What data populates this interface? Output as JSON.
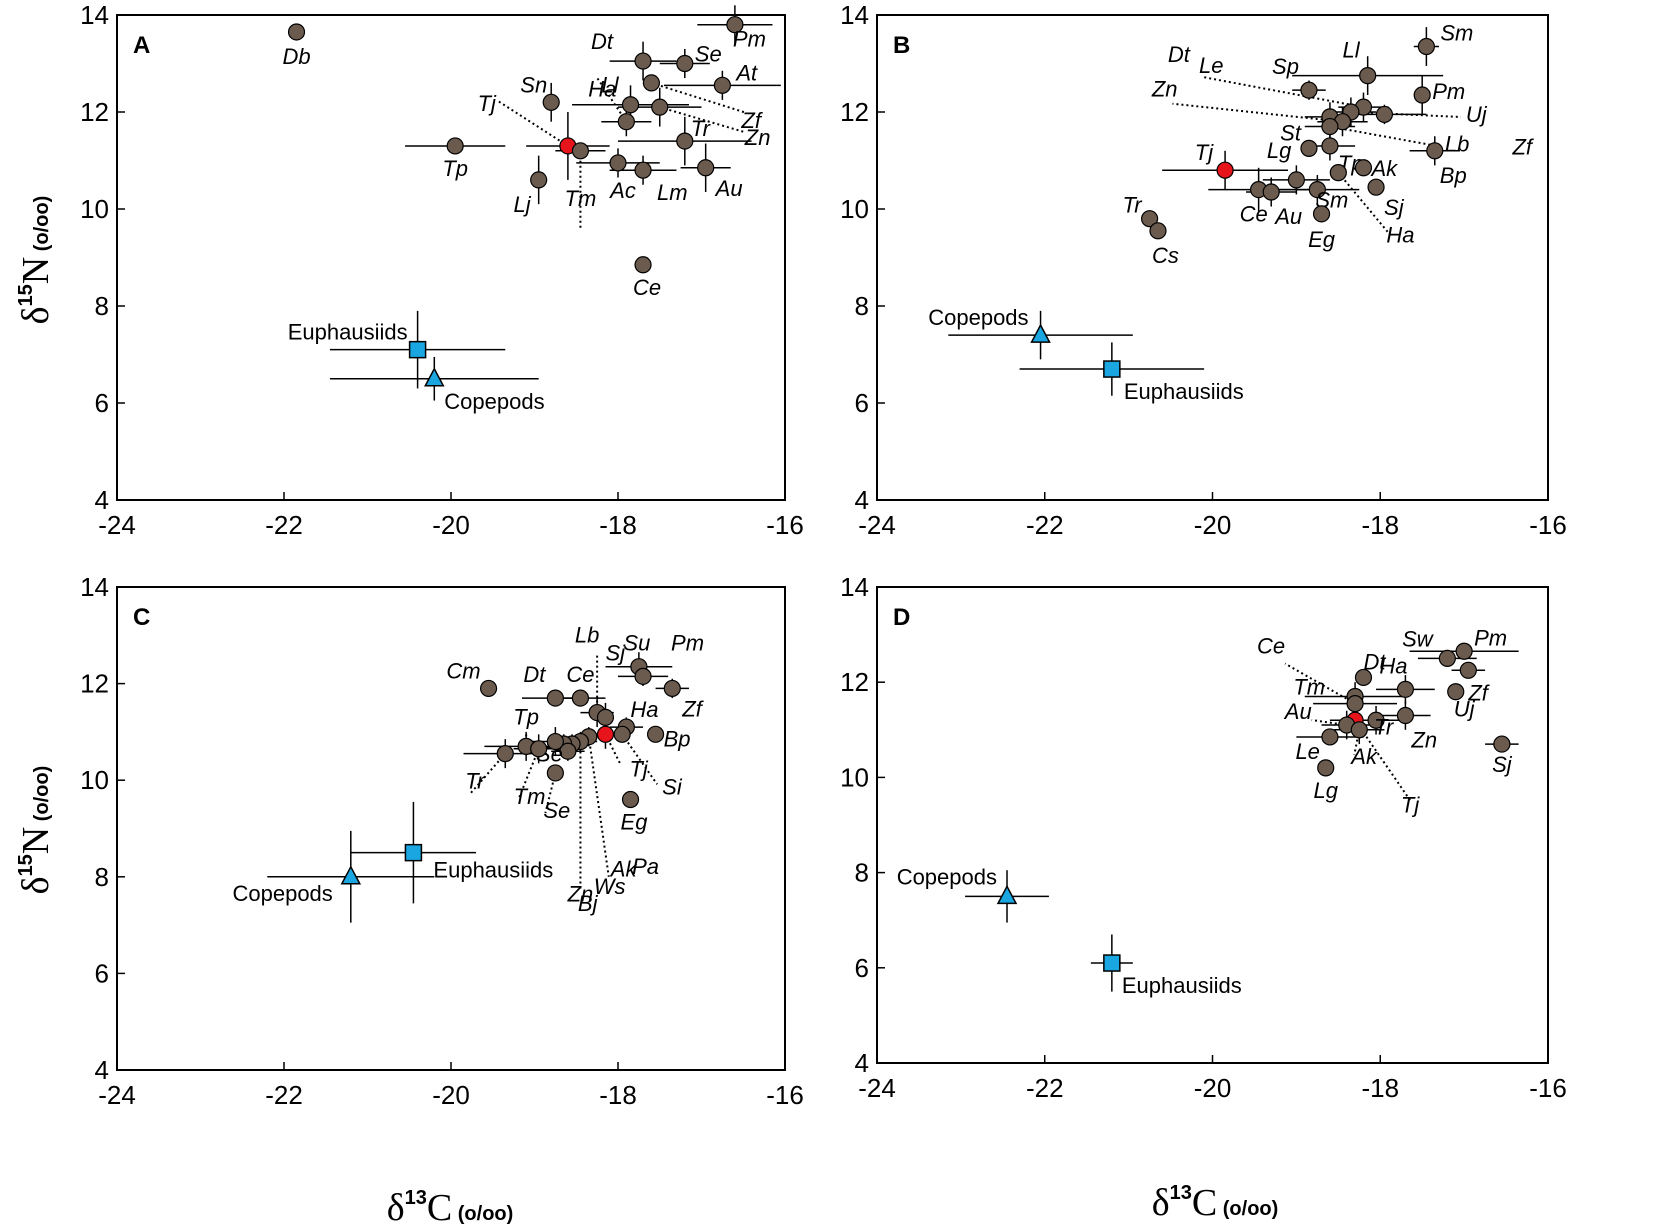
{
  "colors": {
    "fish": "#6b5b4e",
    "tj": "#e8141b",
    "zooplankton": "#1aa6e0",
    "axis": "#000000"
  },
  "chart_data": [
    {
      "type": "scatter",
      "panel": "A",
      "xlabel_main": "δ",
      "xlabel_sup": "13",
      "xlabel_rest": "C",
      "xlabel_unit": "(o/oo)",
      "ylabel_main": "δ",
      "ylabel_sup": "15",
      "ylabel_rest": "N",
      "ylabel_unit": "(o/oo)",
      "xlim": [
        -24,
        -16
      ],
      "ylim": [
        4,
        14
      ],
      "xticks": [
        "-24",
        "-22",
        "-20",
        "-18",
        "-16"
      ],
      "yticks": [
        "4",
        "6",
        "8",
        "10",
        "12",
        "14"
      ],
      "points": [
        {
          "label": "Db",
          "x": -21.85,
          "y": 13.65,
          "xerr": 0,
          "yerr": 0,
          "kind": "fish"
        },
        {
          "label": "Pm",
          "x": -16.6,
          "y": 13.8,
          "xerr": 0.45,
          "yerr": 0.4,
          "kind": "fish"
        },
        {
          "label": "Dt",
          "x": -17.7,
          "y": 13.05,
          "xerr": 0.4,
          "yerr": 0.4,
          "kind": "fish"
        },
        {
          "label": "Se",
          "x": -17.2,
          "y": 13.0,
          "xerr": 0.3,
          "yerr": 0.3,
          "kind": "fish"
        },
        {
          "label": "At",
          "x": -16.75,
          "y": 12.55,
          "xerr": 0.7,
          "yerr": 0.3,
          "kind": "fish"
        },
        {
          "label": "Sn",
          "x": -18.8,
          "y": 12.2,
          "xerr": 0,
          "yerr": 0.4,
          "kind": "fish"
        },
        {
          "label": "Ll",
          "x": -17.85,
          "y": 12.15,
          "xerr": 0.7,
          "yerr": 0.4,
          "kind": "fish"
        },
        {
          "label": "Zf",
          "x": -17.6,
          "y": 12.6,
          "xerr": 0,
          "yerr": 0,
          "kind": "fish"
        },
        {
          "label": "Zn",
          "x": -17.5,
          "y": 12.1,
          "xerr": 0.5,
          "yerr": 0.4,
          "kind": "fish"
        },
        {
          "label": "Ha",
          "x": -17.9,
          "y": 11.8,
          "xerr": 0.3,
          "yerr": 0.3,
          "kind": "fish"
        },
        {
          "label": "Tp",
          "x": -19.95,
          "y": 11.3,
          "xerr": 0.6,
          "yerr": 0,
          "kind": "fish"
        },
        {
          "label": "Tj",
          "x": -18.6,
          "y": 11.3,
          "xerr": 0.5,
          "yerr": 0.7,
          "kind": "tj"
        },
        {
          "label": "Tm",
          "x": -18.45,
          "y": 11.2,
          "xerr": 0.3,
          "yerr": 0,
          "kind": "fish"
        },
        {
          "label": "Tr",
          "x": -17.2,
          "y": 11.4,
          "xerr": 0.8,
          "yerr": 0.5,
          "kind": "fish"
        },
        {
          "label": "Ac",
          "x": -18.0,
          "y": 10.95,
          "xerr": 0.5,
          "yerr": 0.3,
          "kind": "fish"
        },
        {
          "label": "Lm",
          "x": -17.7,
          "y": 10.8,
          "xerr": 0.4,
          "yerr": 0.3,
          "kind": "fish"
        },
        {
          "label": "Au",
          "x": -16.95,
          "y": 10.85,
          "xerr": 0.3,
          "yerr": 0.5,
          "kind": "fish"
        },
        {
          "label": "Lj",
          "x": -18.95,
          "y": 10.6,
          "xerr": 0,
          "yerr": 0.5,
          "kind": "fish"
        },
        {
          "label": "Ce",
          "x": -17.7,
          "y": 8.85,
          "xerr": 0,
          "yerr": 0,
          "kind": "fish"
        },
        {
          "label": "Euphausiids",
          "x": -20.4,
          "y": 7.1,
          "xerr": 1.05,
          "yerr": 0.8,
          "kind": "euphausiid"
        },
        {
          "label": "Copepods",
          "x": -20.2,
          "y": 6.5,
          "xerr": 1.25,
          "yerr": 0.45,
          "kind": "copepod"
        }
      ]
    },
    {
      "type": "scatter",
      "panel": "B",
      "xlim": [
        -24,
        -16
      ],
      "ylim": [
        4,
        14
      ],
      "xticks": [
        "-24",
        "-22",
        "-20",
        "-18",
        "-16"
      ],
      "yticks": [
        "4",
        "6",
        "8",
        "10",
        "12",
        "14"
      ],
      "points": [
        {
          "label": "Sm",
          "x": -17.45,
          "y": 13.35,
          "xerr": 0.15,
          "yerr": 0.4,
          "kind": "fish"
        },
        {
          "label": "Ll",
          "x": -18.15,
          "y": 12.75,
          "xerr": 0.9,
          "yerr": 0.4,
          "kind": "fish"
        },
        {
          "label": "Sp",
          "x": -18.85,
          "y": 12.45,
          "xerr": 0.2,
          "yerr": 0.2,
          "kind": "fish"
        },
        {
          "label": "Pm",
          "x": -17.5,
          "y": 12.35,
          "xerr": 0,
          "yerr": 0.4,
          "kind": "fish"
        },
        {
          "label": "Le",
          "x": -18.2,
          "y": 12.1,
          "xerr": 0.3,
          "yerr": 0.3,
          "kind": "fish"
        },
        {
          "label": "Zf",
          "x": -17.95,
          "y": 11.95,
          "xerr": 0.5,
          "yerr": 0.2,
          "kind": "fish"
        },
        {
          "label": "Dt",
          "x": -18.6,
          "y": 11.9,
          "xerr": 0.3,
          "yerr": 0.3,
          "kind": "fish"
        },
        {
          "label": "Uj",
          "x": -18.35,
          "y": 12.0,
          "xerr": 0.3,
          "yerr": 0.3,
          "kind": "fish"
        },
        {
          "label": "Zn",
          "x": -18.45,
          "y": 11.8,
          "xerr": 0.3,
          "yerr": 0.3,
          "kind": "fish"
        },
        {
          "label": "Lb",
          "x": -18.6,
          "y": 11.7,
          "xerr": 0.3,
          "yerr": 0.3,
          "kind": "fish"
        },
        {
          "label": "St",
          "x": -18.85,
          "y": 11.25,
          "xerr": 0,
          "yerr": 0,
          "kind": "fish"
        },
        {
          "label": "Tp",
          "x": -18.6,
          "y": 11.3,
          "xerr": 0.3,
          "yerr": 0.3,
          "kind": "fish"
        },
        {
          "label": "Bp",
          "x": -17.35,
          "y": 11.2,
          "xerr": 0.3,
          "yerr": 0.3,
          "kind": "fish"
        },
        {
          "label": "Tj",
          "x": -19.85,
          "y": 10.8,
          "xerr": 0.75,
          "yerr": 0.4,
          "kind": "tj"
        },
        {
          "label": "Ak",
          "x": -18.2,
          "y": 10.85,
          "xerr": 0,
          "yerr": 0,
          "kind": "fish"
        },
        {
          "label": "Ha",
          "x": -18.5,
          "y": 10.75,
          "xerr": 0,
          "yerr": 0,
          "kind": "fish"
        },
        {
          "label": "Lg",
          "x": -19.0,
          "y": 10.6,
          "xerr": 0.4,
          "yerr": 0.3,
          "kind": "fish"
        },
        {
          "label": "Sj",
          "x": -18.05,
          "y": 10.45,
          "xerr": 0,
          "yerr": 0,
          "kind": "fish"
        },
        {
          "label": "Sm",
          "x": -18.75,
          "y": 10.4,
          "xerr": 0.5,
          "yerr": 0.3,
          "kind": "fish"
        },
        {
          "label": "Ce",
          "x": -19.45,
          "y": 10.4,
          "xerr": 0.6,
          "yerr": 0.45,
          "kind": "fish"
        },
        {
          "label": "Au",
          "x": -19.3,
          "y": 10.35,
          "xerr": 0.3,
          "yerr": 0.3,
          "kind": "fish"
        },
        {
          "label": "Eg",
          "x": -18.7,
          "y": 9.9,
          "xerr": 0,
          "yerr": 0,
          "kind": "fish"
        },
        {
          "label": "Tr",
          "x": -20.75,
          "y": 9.8,
          "xerr": 0,
          "yerr": 0,
          "kind": "fish"
        },
        {
          "label": "Cs",
          "x": -20.65,
          "y": 9.55,
          "xerr": 0,
          "yerr": 0,
          "kind": "fish"
        },
        {
          "label": "Copepods",
          "x": -22.05,
          "y": 7.4,
          "xerr": 1.1,
          "yerr": 0.5,
          "kind": "copepod"
        },
        {
          "label": "Euphausiids",
          "x": -21.2,
          "y": 6.7,
          "xerr": 1.1,
          "yerr": 0.55,
          "kind": "euphausiid"
        }
      ]
    },
    {
      "type": "scatter",
      "panel": "C",
      "xlim": [
        -24,
        -16
      ],
      "ylim": [
        4,
        14
      ],
      "xticks": [
        "-24",
        "-22",
        "-20",
        "-18",
        "-16"
      ],
      "yticks": [
        "4",
        "6",
        "8",
        "10",
        "12",
        "14"
      ],
      "points": [
        {
          "label": "Cm",
          "x": -19.55,
          "y": 11.9,
          "xerr": 0,
          "yerr": 0,
          "kind": "fish"
        },
        {
          "label": "Su",
          "x": -17.75,
          "y": 12.35,
          "xerr": 0.4,
          "yerr": 0.3,
          "kind": "fish"
        },
        {
          "label": "Pm",
          "x": -17.7,
          "y": 12.15,
          "xerr": 0.3,
          "yerr": 0.2,
          "kind": "fish"
        },
        {
          "label": "Zf",
          "x": -17.35,
          "y": 11.9,
          "xerr": 0.2,
          "yerr": 0.2,
          "kind": "fish"
        },
        {
          "label": "Dt",
          "x": -18.75,
          "y": 11.7,
          "xerr": 0.4,
          "yerr": 0,
          "kind": "fish"
        },
        {
          "label": "Ce",
          "x": -18.45,
          "y": 11.7,
          "xerr": 0.3,
          "yerr": 0,
          "kind": "fish"
        },
        {
          "label": "Lb",
          "x": -18.25,
          "y": 11.4,
          "xerr": 0.2,
          "yerr": 0.3,
          "kind": "fish"
        },
        {
          "label": "Sj",
          "x": -18.15,
          "y": 11.3,
          "xerr": 0,
          "yerr": 0.3,
          "kind": "fish"
        },
        {
          "label": "Ha",
          "x": -17.9,
          "y": 11.1,
          "xerr": 0.2,
          "yerr": 0.2,
          "kind": "fish"
        },
        {
          "label": "Bp",
          "x": -17.55,
          "y": 10.95,
          "xerr": 0,
          "yerr": 0,
          "kind": "fish"
        },
        {
          "label": "Tj",
          "x": -18.15,
          "y": 10.95,
          "xerr": 0.3,
          "yerr": 0.3,
          "kind": "tj"
        },
        {
          "label": "Si",
          "x": -17.95,
          "y": 10.95,
          "xerr": 0,
          "yerr": 0,
          "kind": "fish"
        },
        {
          "label": "Ak",
          "x": -18.35,
          "y": 10.9,
          "xerr": 0.2,
          "yerr": 0.2,
          "kind": "fish"
        },
        {
          "label": "Zn",
          "x": -18.45,
          "y": 10.8,
          "xerr": 0.2,
          "yerr": 0.2,
          "kind": "fish"
        },
        {
          "label": "Pa",
          "x": -18.55,
          "y": 10.75,
          "xerr": 0.2,
          "yerr": 0.2,
          "kind": "fish"
        },
        {
          "label": "Ws",
          "x": -18.65,
          "y": 10.75,
          "xerr": 0.2,
          "yerr": 0.2,
          "kind": "fish"
        },
        {
          "label": "Bj",
          "x": -18.6,
          "y": 10.6,
          "xerr": 0.2,
          "yerr": 0.2,
          "kind": "fish"
        },
        {
          "label": "Tp",
          "x": -19.1,
          "y": 10.7,
          "xerr": 0.5,
          "yerr": 0.3,
          "kind": "fish"
        },
        {
          "label": "Se",
          "x": -18.75,
          "y": 10.8,
          "xerr": 0.3,
          "yerr": 0.3,
          "kind": "fish"
        },
        {
          "label": "Tr",
          "x": -19.35,
          "y": 10.55,
          "xerr": 0.5,
          "yerr": 0.3,
          "kind": "fish"
        },
        {
          "label": "Tm",
          "x": -18.95,
          "y": 10.65,
          "xerr": 0.3,
          "yerr": 0.3,
          "kind": "fish"
        },
        {
          "label": "Se2",
          "x": -18.75,
          "y": 10.15,
          "xerr": 0,
          "yerr": 0,
          "kind": "fish"
        },
        {
          "label": "Eg",
          "x": -17.85,
          "y": 9.6,
          "xerr": 0,
          "yerr": 0,
          "kind": "fish"
        },
        {
          "label": "Euphausiids",
          "x": -20.45,
          "y": 8.5,
          "xerr": 0.75,
          "yerr": 1.05,
          "kind": "euphausiid"
        },
        {
          "label": "Copepods",
          "x": -21.2,
          "y": 8.0,
          "xerr": 1.0,
          "yerr": 0.95,
          "kind": "copepod"
        }
      ]
    },
    {
      "type": "scatter",
      "panel": "D",
      "xlim": [
        -24,
        -16
      ],
      "ylim": [
        4,
        14
      ],
      "xticks": [
        "-24",
        "-22",
        "-20",
        "-18",
        "-16"
      ],
      "yticks": [
        "4",
        "6",
        "8",
        "10",
        "12",
        "14"
      ],
      "points": [
        {
          "label": "Pm",
          "x": -17.0,
          "y": 12.65,
          "xerr": 0.65,
          "yerr": 0,
          "kind": "fish"
        },
        {
          "label": "Sw",
          "x": -17.2,
          "y": 12.5,
          "xerr": 0.35,
          "yerr": 0,
          "kind": "fish"
        },
        {
          "label": "Zf",
          "x": -16.95,
          "y": 12.25,
          "xerr": 0.2,
          "yerr": 0,
          "kind": "fish"
        },
        {
          "label": "Dt",
          "x": -18.2,
          "y": 12.1,
          "xerr": 0,
          "yerr": 0,
          "kind": "fish"
        },
        {
          "label": "Ha",
          "x": -17.7,
          "y": 11.85,
          "xerr": 0.35,
          "yerr": 0.3,
          "kind": "fish"
        },
        {
          "label": "Uj",
          "x": -17.1,
          "y": 11.8,
          "xerr": 0,
          "yerr": 0,
          "kind": "fish"
        },
        {
          "label": "Tm",
          "x": -18.3,
          "y": 11.7,
          "xerr": 0.6,
          "yerr": 0.3,
          "kind": "fish"
        },
        {
          "label": "Ce",
          "x": -18.3,
          "y": 11.55,
          "xerr": 0.5,
          "yerr": 0.3,
          "kind": "fish"
        },
        {
          "label": "Zn",
          "x": -17.7,
          "y": 11.3,
          "xerr": 0.3,
          "yerr": 0.3,
          "kind": "fish"
        },
        {
          "label": "Tr",
          "x": -18.05,
          "y": 11.2,
          "xerr": 0.4,
          "yerr": 0.3,
          "kind": "fish"
        },
        {
          "label": "Tj",
          "x": -18.3,
          "y": 11.2,
          "xerr": 0.3,
          "yerr": 0.3,
          "kind": "tj"
        },
        {
          "label": "Au",
          "x": -18.4,
          "y": 11.1,
          "xerr": 0.3,
          "yerr": 0.3,
          "kind": "fish"
        },
        {
          "label": "Ak",
          "x": -18.25,
          "y": 11.0,
          "xerr": 0.3,
          "yerr": 0.3,
          "kind": "fish"
        },
        {
          "label": "Le",
          "x": -18.6,
          "y": 10.85,
          "xerr": 0.4,
          "yerr": 0,
          "kind": "fish"
        },
        {
          "label": "Sj",
          "x": -16.55,
          "y": 10.7,
          "xerr": 0.2,
          "yerr": 0,
          "kind": "fish"
        },
        {
          "label": "Lg",
          "x": -18.65,
          "y": 10.2,
          "xerr": 0,
          "yerr": 0,
          "kind": "fish"
        },
        {
          "label": "Copepods",
          "x": -22.45,
          "y": 7.5,
          "xerr": 0.5,
          "yerr": 0.55,
          "kind": "copepod"
        },
        {
          "label": "Euphausiids",
          "x": -21.2,
          "y": 6.1,
          "xerr": 0.25,
          "yerr": 0.6,
          "kind": "euphausiid"
        }
      ]
    }
  ]
}
